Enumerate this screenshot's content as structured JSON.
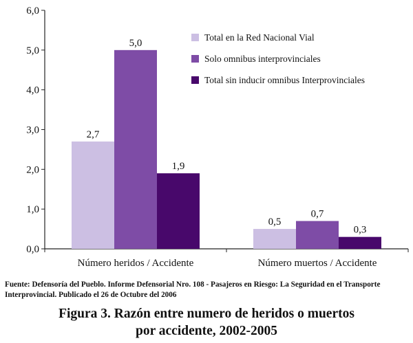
{
  "chart_data": {
    "type": "bar",
    "categories": [
      "Número heridos / Accidente",
      "Número muertos / Accidente"
    ],
    "series": [
      {
        "name": "Total en la Red Nacional Vial",
        "values": [
          2.7,
          0.5
        ],
        "labels": [
          "2,7",
          "0,5"
        ],
        "color": "#ccbfe3"
      },
      {
        "name": "Solo omnibus interprovinciales",
        "values": [
          5.0,
          0.7
        ],
        "labels": [
          "5,0",
          "0,7"
        ],
        "color": "#7e4ca6"
      },
      {
        "name": "Total sin inducir omnibus Interprovinciales",
        "values": [
          1.9,
          0.3
        ],
        "labels": [
          "1,9",
          "0,3"
        ],
        "color": "#48086b"
      }
    ],
    "y_ticks": [
      "0,0",
      "1,0",
      "2,0",
      "3,0",
      "4,0",
      "5,0",
      "6,0"
    ],
    "ylim": [
      0,
      6
    ],
    "grid": false,
    "legend": "top-right"
  },
  "source_note": "Fuente: Defensoría del Pueblo. Informe Defensorial Nro. 108 - Pasajeros en Riesgo: La Seguridad en el Transporte Interprovincial. Publicado el 26 de Octubre del 2006",
  "caption": {
    "line1": "Figura 3. Razón entre numero de heridos o muertos",
    "line2": "por accidente, 2002-2005"
  }
}
